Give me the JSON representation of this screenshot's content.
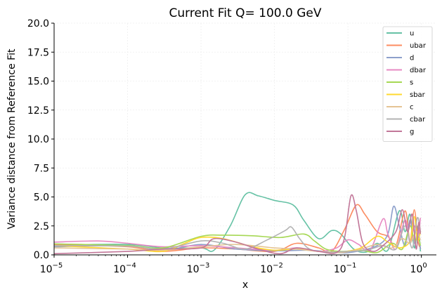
{
  "chart_data": {
    "type": "line",
    "title": "Current Fit Q= 100.0 GeV",
    "xlabel": "x",
    "ylabel": "Variance distance from Reference Fit",
    "xscale": "log",
    "xlim": [
      1e-05,
      1.6
    ],
    "ylim": [
      0,
      20
    ],
    "yticks": [
      0,
      2.5,
      5,
      7.5,
      10,
      12.5,
      15,
      17.5,
      20
    ],
    "ytick_labels": [
      "0.0",
      "2.5",
      "5.0",
      "7.5",
      "10.0",
      "12.5",
      "15.0",
      "17.5",
      "20.0"
    ],
    "xticks": [
      1e-05,
      0.0001,
      0.001,
      0.01,
      0.1,
      1
    ],
    "xtick_labels": [
      {
        "base": "10",
        "exp": "−5"
      },
      {
        "base": "10",
        "exp": "−4"
      },
      {
        "base": "10",
        "exp": "−3"
      },
      {
        "base": "10",
        "exp": "−2"
      },
      {
        "base": "10",
        "exp": "−1"
      },
      {
        "base": "10",
        "exp": "0"
      }
    ],
    "grid": true,
    "legend_position": "top-right",
    "series": [
      {
        "name": "u",
        "color": "#66c2a5",
        "points": [
          [
            1e-05,
            0.85
          ],
          [
            0.0001,
            0.9
          ],
          [
            0.0003,
            0.6
          ],
          [
            0.001,
            0.6
          ],
          [
            0.0015,
            0.4
          ],
          [
            0.0025,
            2.5
          ],
          [
            0.004,
            5.2
          ],
          [
            0.006,
            5.1
          ],
          [
            0.01,
            4.7
          ],
          [
            0.018,
            4.3
          ],
          [
            0.025,
            3.0
          ],
          [
            0.04,
            1.4
          ],
          [
            0.06,
            2.1
          ],
          [
            0.08,
            1.8
          ],
          [
            0.12,
            0.5
          ],
          [
            0.18,
            0.25
          ],
          [
            0.25,
            1.0
          ],
          [
            0.35,
            0.4
          ],
          [
            0.5,
            3.8
          ],
          [
            0.6,
            2.0
          ],
          [
            0.7,
            3.5
          ],
          [
            0.8,
            0.6
          ],
          [
            0.9,
            2.5
          ],
          [
            0.97,
            0.3
          ]
        ]
      },
      {
        "name": "ubar",
        "color": "#fc8d62",
        "points": [
          [
            1e-05,
            0.9
          ],
          [
            0.0001,
            0.7
          ],
          [
            0.0003,
            0.3
          ],
          [
            0.001,
            0.6
          ],
          [
            0.003,
            0.5
          ],
          [
            0.01,
            0.3
          ],
          [
            0.02,
            1.0
          ],
          [
            0.04,
            0.6
          ],
          [
            0.06,
            0.3
          ],
          [
            0.09,
            2.2
          ],
          [
            0.13,
            4.3
          ],
          [
            0.17,
            3.5
          ],
          [
            0.25,
            2.0
          ],
          [
            0.35,
            1.6
          ],
          [
            0.45,
            0.8
          ],
          [
            0.6,
            3.8
          ],
          [
            0.7,
            1.2
          ],
          [
            0.8,
            3.9
          ],
          [
            0.9,
            1.2
          ],
          [
            0.97,
            0.6
          ]
        ]
      },
      {
        "name": "d",
        "color": "#8da0cb",
        "points": [
          [
            1e-05,
            0.7
          ],
          [
            0.0001,
            0.8
          ],
          [
            0.0003,
            0.4
          ],
          [
            0.001,
            0.9
          ],
          [
            0.003,
            0.5
          ],
          [
            0.01,
            0.35
          ],
          [
            0.03,
            0.4
          ],
          [
            0.07,
            0.2
          ],
          [
            0.12,
            0.25
          ],
          [
            0.25,
            0.8
          ],
          [
            0.35,
            1.8
          ],
          [
            0.42,
            4.2
          ],
          [
            0.5,
            2.5
          ],
          [
            0.6,
            0.8
          ],
          [
            0.7,
            3.0
          ],
          [
            0.8,
            1.0
          ],
          [
            0.9,
            2.0
          ],
          [
            0.97,
            0.5
          ]
        ]
      },
      {
        "name": "dbar",
        "color": "#e78ac3",
        "points": [
          [
            1e-05,
            1.1
          ],
          [
            4e-05,
            1.2
          ],
          [
            0.0001,
            1.0
          ],
          [
            0.0003,
            0.7
          ],
          [
            0.001,
            0.8
          ],
          [
            0.003,
            0.6
          ],
          [
            0.01,
            0.4
          ],
          [
            0.02,
            0.6
          ],
          [
            0.04,
            0.3
          ],
          [
            0.07,
            0.6
          ],
          [
            0.1,
            1.3
          ],
          [
            0.14,
            0.9
          ],
          [
            0.2,
            0.4
          ],
          [
            0.3,
            3.1
          ],
          [
            0.35,
            1.8
          ],
          [
            0.45,
            0.5
          ],
          [
            0.6,
            3.0
          ],
          [
            0.7,
            1.0
          ],
          [
            0.8,
            2.5
          ],
          [
            0.9,
            1.5
          ],
          [
            0.97,
            3.2
          ]
        ]
      },
      {
        "name": "s",
        "color": "#a6d854",
        "points": [
          [
            1e-05,
            0.95
          ],
          [
            0.0001,
            0.8
          ],
          [
            0.0003,
            0.6
          ],
          [
            0.001,
            1.6
          ],
          [
            0.002,
            1.7
          ],
          [
            0.005,
            1.65
          ],
          [
            0.012,
            1.5
          ],
          [
            0.025,
            1.8
          ],
          [
            0.035,
            1.2
          ],
          [
            0.05,
            0.5
          ],
          [
            0.08,
            0.3
          ],
          [
            0.15,
            0.4
          ],
          [
            0.25,
            0.2
          ],
          [
            0.4,
            1.0
          ],
          [
            0.55,
            0.5
          ],
          [
            0.7,
            2.5
          ],
          [
            0.8,
            1.2
          ],
          [
            0.9,
            1.6
          ],
          [
            0.97,
            0.8
          ]
        ]
      },
      {
        "name": "sbar",
        "color": "#ffd92f",
        "points": [
          [
            1e-05,
            0.8
          ],
          [
            0.0001,
            0.5
          ],
          [
            0.0003,
            0.3
          ],
          [
            0.0006,
            1.0
          ],
          [
            0.001,
            1.5
          ],
          [
            0.002,
            1.4
          ],
          [
            0.005,
            0.7
          ],
          [
            0.01,
            0.4
          ],
          [
            0.02,
            0.5
          ],
          [
            0.04,
            0.3
          ],
          [
            0.08,
            0.25
          ],
          [
            0.15,
            0.6
          ],
          [
            0.25,
            1.6
          ],
          [
            0.35,
            1.1
          ],
          [
            0.5,
            0.6
          ],
          [
            0.7,
            1.2
          ],
          [
            0.8,
            3.3
          ],
          [
            0.88,
            1.2
          ],
          [
            0.97,
            2.0
          ]
        ]
      },
      {
        "name": "c",
        "color": "#e5c494",
        "points": [
          [
            1e-05,
            0.6
          ],
          [
            0.0001,
            0.5
          ],
          [
            0.0003,
            0.4
          ],
          [
            0.001,
            0.7
          ],
          [
            0.003,
            0.9
          ],
          [
            0.01,
            0.6
          ],
          [
            0.02,
            0.5
          ],
          [
            0.04,
            0.3
          ],
          [
            0.08,
            0.2
          ],
          [
            0.15,
            0.5
          ],
          [
            0.25,
            0.9
          ],
          [
            0.4,
            0.6
          ],
          [
            0.55,
            1.4
          ],
          [
            0.7,
            1.0
          ],
          [
            0.85,
            2.0
          ],
          [
            0.97,
            1.3
          ]
        ]
      },
      {
        "name": "cbar",
        "color": "#b3b3b3",
        "points": [
          [
            1e-05,
            0.8
          ],
          [
            0.0001,
            0.75
          ],
          [
            0.0003,
            0.5
          ],
          [
            0.001,
            1.2
          ],
          [
            0.002,
            1.0
          ],
          [
            0.004,
            0.5
          ],
          [
            0.008,
            1.3
          ],
          [
            0.014,
            2.1
          ],
          [
            0.017,
            2.4
          ],
          [
            0.022,
            1.4
          ],
          [
            0.03,
            0.5
          ],
          [
            0.05,
            0.25
          ],
          [
            0.1,
            0.3
          ],
          [
            0.18,
            0.4
          ],
          [
            0.3,
            0.8
          ],
          [
            0.45,
            0.5
          ],
          [
            0.6,
            2.5
          ],
          [
            0.75,
            0.6
          ],
          [
            0.88,
            3.2
          ],
          [
            0.97,
            2.0
          ]
        ]
      },
      {
        "name": "g",
        "color": "#c27799",
        "points": [
          [
            1e-05,
            0.1
          ],
          [
            0.0001,
            0.3
          ],
          [
            0.0003,
            0.5
          ],
          [
            0.001,
            0.6
          ],
          [
            0.0015,
            1.4
          ],
          [
            0.003,
            1.1
          ],
          [
            0.006,
            0.5
          ],
          [
            0.012,
            0.1
          ],
          [
            0.02,
            0.6
          ],
          [
            0.04,
            0.3
          ],
          [
            0.07,
            0.2
          ],
          [
            0.09,
            1.5
          ],
          [
            0.11,
            5.1
          ],
          [
            0.13,
            3.8
          ],
          [
            0.16,
            1.0
          ],
          [
            0.22,
            0.3
          ],
          [
            0.3,
            0.8
          ],
          [
            0.45,
            2.0
          ],
          [
            0.55,
            3.9
          ],
          [
            0.65,
            2.0
          ],
          [
            0.75,
            3.5
          ],
          [
            0.85,
            0.5
          ],
          [
            0.92,
            2.8
          ],
          [
            0.97,
            1.8
          ]
        ]
      }
    ]
  }
}
